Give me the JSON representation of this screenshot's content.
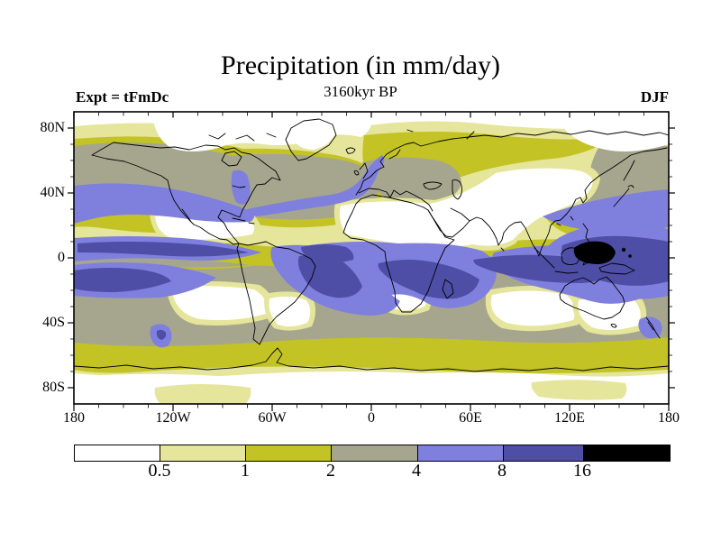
{
  "header": {
    "title": "Precipitation (in mm/day)",
    "subtitle": "3160kyr BP",
    "experiment_label": "Expt = tFmDc",
    "season_label": "DJF"
  },
  "axes": {
    "lat_labels": [
      "80N",
      "40N",
      "0",
      "40S",
      "80S"
    ],
    "lon_labels": [
      "180",
      "120W",
      "60W",
      "0",
      "60E",
      "120E",
      "180"
    ]
  },
  "palette": {
    "white": "#ffffff",
    "pale_yellow": "#e5e59b",
    "olive": "#c3c325",
    "gray": "#a6a68f",
    "blue": "#7f7fde",
    "dark_blue": "#4e4ea6",
    "black": "#000000"
  },
  "colorbar": {
    "labels": [
      "0.5",
      "1",
      "2",
      "4",
      "8",
      "16"
    ],
    "colors": [
      "#ffffff",
      "#e5e59b",
      "#c3c325",
      "#a6a68f",
      "#7f7fde",
      "#4e4ea6",
      "#000000"
    ]
  },
  "chart_data": {
    "type": "heatmap",
    "title": "Precipitation (in mm/day)",
    "subtitle": "3160kyr BP",
    "experiment": "tFmDc",
    "season": "DJF",
    "units": "mm/day",
    "projection": "equirectangular world map with coastlines",
    "lon_range": [
      -180,
      180
    ],
    "lat_range": [
      -90,
      90
    ],
    "lon_ticks": {
      "major_every_deg": 60,
      "minor_every_deg": 15
    },
    "lat_ticks": {
      "major_every_deg": 40,
      "minor_every_deg": 10
    },
    "contour_levels": [
      0.5,
      1,
      2,
      4,
      8,
      16
    ],
    "bands": [
      {
        "range": "< 0.5",
        "color": "#ffffff"
      },
      {
        "range": "0.5 - 1",
        "color": "#e5e59b"
      },
      {
        "range": "1 - 2",
        "color": "#c3c325"
      },
      {
        "range": "2 - 4",
        "color": "#a6a68f"
      },
      {
        "range": "4 - 8",
        "color": "#7f7fde"
      },
      {
        "range": "8 - 16",
        "color": "#4e4ea6"
      },
      {
        "range": "> 16",
        "color": "#000000"
      }
    ],
    "notable_features": [
      "Black (>16 mm/day) maximum over the Maritime Continent / New Guinea region near the equator",
      "Dark-blue (8-16) bands: equatorial Pacific ITCZ just north of equator, SPCZ in far western sector, Amazon/Brazil, equatorial Atlantic, southern Africa with Madagascar, southern-tropical Indian Ocean merging with west Pacific",
      "Blue (4-8) midlatitude storm tracks over North Pacific (~30-45N), North Atlantic extending NE toward Europe, and western North Pacific near Japan",
      "Small blue maxima at southern Chile coast and New Zealand",
      "White dry zones: Sahara-Arabia-central Asia-India, Arctic, Antarctica, subtropical SE Pacific, South Atlantic, southern Indian Ocean, interior Australia, E Pacific off Mexico",
      "Gray (2-4) band covering most of the Southern Ocean midlatitudes and northern midlatitude oceans",
      "Olive and pale-yellow (0.5-2) transition rings around wet and dry regions, including a band fringing Antarctica"
    ]
  }
}
